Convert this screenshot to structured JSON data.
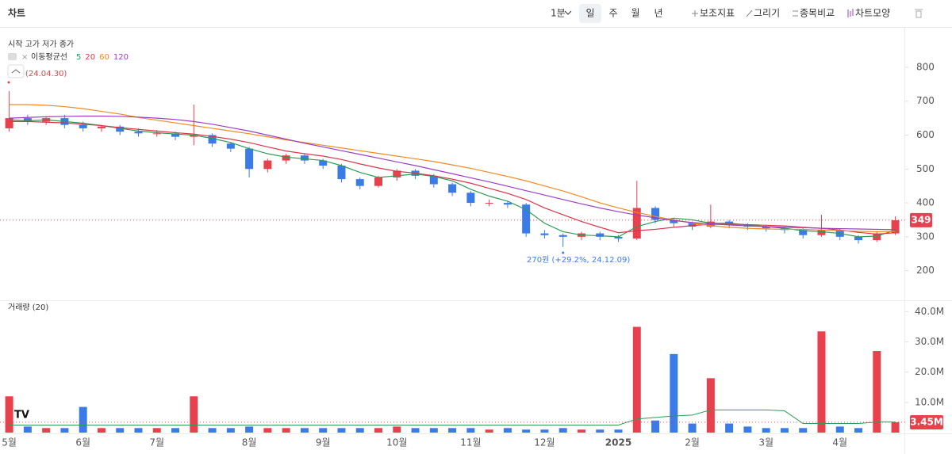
{
  "header": {
    "title": "차트",
    "interval": "1분",
    "periods": [
      "일",
      "주",
      "월",
      "년"
    ],
    "tools": [
      "보조지표",
      "그리기",
      "종목비교",
      "차트모양"
    ]
  },
  "chart_data": [
    {
      "type": "candlestick",
      "legend_title": "시작 고가 저가 종가",
      "ma_title": "이동평균선",
      "up_color": "#e8414e",
      "down_color": "#3a7be8",
      "ylim": [
        115,
        905
      ],
      "yticks": [
        200,
        300,
        400,
        500,
        600,
        700,
        800
      ],
      "open": [
        620,
        650,
        640,
        650,
        630,
        620,
        625,
        610,
        605,
        605,
        595,
        600,
        575,
        560,
        500,
        525,
        540,
        525,
        510,
        470,
        450,
        475,
        495,
        480,
        455,
        430,
        400,
        400,
        395,
        310,
        305,
        300,
        310,
        300,
        295,
        385,
        350,
        340,
        330,
        345,
        335,
        330,
        325,
        320,
        305,
        320,
        300,
        290,
        310
      ],
      "high": [
        730,
        660,
        655,
        660,
        640,
        630,
        630,
        620,
        615,
        610,
        690,
        605,
        580,
        565,
        530,
        545,
        545,
        530,
        515,
        475,
        480,
        500,
        500,
        485,
        460,
        435,
        410,
        405,
        400,
        320,
        310,
        315,
        315,
        305,
        465,
        390,
        355,
        345,
        395,
        350,
        340,
        335,
        330,
        325,
        365,
        325,
        305,
        315,
        360
      ],
      "low": [
        610,
        630,
        630,
        620,
        610,
        610,
        600,
        595,
        595,
        585,
        570,
        565,
        550,
        475,
        490,
        515,
        515,
        500,
        460,
        440,
        445,
        465,
        470,
        445,
        420,
        390,
        390,
        385,
        300,
        295,
        270,
        290,
        290,
        285,
        290,
        340,
        330,
        320,
        325,
        325,
        320,
        315,
        310,
        295,
        300,
        290,
        280,
        285,
        305
      ],
      "close": [
        650,
        640,
        650,
        630,
        620,
        625,
        610,
        605,
        605,
        595,
        600,
        575,
        560,
        500,
        525,
        540,
        525,
        510,
        470,
        450,
        475,
        495,
        480,
        455,
        430,
        400,
        400,
        395,
        310,
        305,
        300,
        310,
        300,
        295,
        385,
        350,
        340,
        330,
        345,
        335,
        330,
        325,
        320,
        305,
        320,
        300,
        290,
        310,
        349
      ],
      "series": [
        {
          "name": "5",
          "color": "#2e9b57",
          "values": [
            645,
            642,
            645,
            640,
            635,
            628,
            620,
            612,
            607,
            603,
            600,
            590,
            578,
            560,
            545,
            535,
            530,
            525,
            510,
            490,
            475,
            480,
            485,
            478,
            465,
            440,
            420,
            405,
            380,
            340,
            315,
            305,
            303,
            300,
            330,
            345,
            355,
            350,
            340,
            340,
            335,
            330,
            325,
            318,
            315,
            310,
            300,
            302,
            320
          ]
        },
        {
          "name": "20",
          "color": "#d9364a",
          "values": [
            640,
            640,
            638,
            636,
            632,
            628,
            622,
            617,
            612,
            607,
            603,
            596,
            588,
            578,
            565,
            553,
            545,
            538,
            528,
            515,
            503,
            493,
            488,
            480,
            470,
            458,
            443,
            428,
            410,
            385,
            365,
            345,
            328,
            312,
            318,
            322,
            328,
            333,
            337,
            337,
            336,
            334,
            332,
            328,
            325,
            320,
            313,
            308,
            312
          ]
        },
        {
          "name": "60",
          "color": "#f08a24",
          "values": [
            690,
            690,
            688,
            684,
            678,
            670,
            662,
            652,
            644,
            636,
            628,
            620,
            612,
            604,
            595,
            586,
            578,
            570,
            562,
            554,
            546,
            538,
            530,
            522,
            512,
            502,
            490,
            478,
            465,
            450,
            435,
            418,
            400,
            385,
            372,
            360,
            350,
            340,
            333,
            328,
            325,
            323,
            322,
            322,
            320,
            318,
            316,
            315,
            316
          ]
        },
        {
          "name": "120",
          "color": "#9b3fc2",
          "values": [
            650,
            652,
            654,
            655,
            656,
            656,
            655,
            653,
            650,
            646,
            640,
            632,
            622,
            612,
            600,
            588,
            576,
            565,
            554,
            543,
            532,
            521,
            510,
            498,
            486,
            474,
            462,
            449,
            436,
            423,
            410,
            397,
            385,
            374,
            364,
            356,
            348,
            342,
            338,
            335,
            332,
            330,
            328,
            327,
            325,
            324,
            323,
            322,
            321
          ]
        }
      ],
      "annotations": [
        "270원 (+29.2%, 24.12.09)",
        "(24.04.30)"
      ]
    },
    {
      "type": "bar",
      "title": "거래량 (20)",
      "categories": [
        "5월",
        null,
        null,
        null,
        "6월",
        null,
        null,
        null,
        "7월",
        null,
        null,
        null,
        null,
        "8월",
        null,
        null,
        null,
        "9월",
        null,
        null,
        null,
        "10월",
        null,
        null,
        null,
        "11월",
        null,
        null,
        null,
        "12월",
        null,
        null,
        null,
        "2025",
        null,
        null,
        null,
        "2월",
        null,
        null,
        null,
        "3월",
        null,
        null,
        null,
        "4월",
        null,
        null,
        null
      ],
      "values": [
        12,
        2,
        1.5,
        1.5,
        8.5,
        1.5,
        1.5,
        1.5,
        1.5,
        1.5,
        12,
        1.5,
        1.5,
        2,
        1.5,
        1.5,
        1.5,
        1.5,
        1.5,
        1.5,
        1.5,
        2,
        1.5,
        1.5,
        1.5,
        1.5,
        1,
        1.5,
        1,
        1,
        1.5,
        1,
        1,
        1,
        35,
        4,
        26,
        3,
        18,
        3,
        2,
        1.5,
        1.5,
        1.5,
        33.5,
        2,
        1.5,
        27,
        3.45
      ],
      "value_labels": [
        null,
        null,
        null,
        null,
        null,
        null,
        null,
        null,
        null,
        null,
        null,
        null,
        null,
        null,
        null,
        null,
        null,
        null,
        null,
        null,
        null,
        null,
        null,
        null,
        null,
        null,
        null,
        null,
        null,
        null,
        null,
        null,
        null,
        null,
        null,
        null,
        null,
        null,
        null,
        null,
        null,
        null,
        null,
        null,
        null,
        null,
        null,
        null,
        "3.45M"
      ],
      "ma_color": "#2e9b57",
      "ma_values": [
        2.5,
        2.5,
        2.5,
        2.5,
        2.5,
        2.5,
        2.5,
        2.5,
        2.5,
        2.5,
        2.5,
        2.5,
        2.5,
        2.5,
        2.5,
        2.5,
        2.5,
        2.5,
        2.5,
        2.5,
        2.5,
        2.5,
        2.5,
        2.5,
        2.5,
        2.5,
        2.5,
        2.5,
        2.5,
        2.5,
        2.5,
        2.5,
        2.5,
        2.5,
        4.5,
        5,
        5.5,
        5.8,
        7.5,
        7.5,
        7.5,
        7.5,
        7.2,
        3,
        3,
        3,
        3,
        3.5,
        3.5
      ],
      "ylim": [
        0,
        43
      ],
      "yticks": [
        {
          "value": 10,
          "label": "10.0M"
        },
        {
          "value": 20,
          "label": "20.0M"
        },
        {
          "value": 30,
          "label": "30.0M"
        },
        {
          "value": 40,
          "label": "40.0M"
        }
      ]
    }
  ]
}
